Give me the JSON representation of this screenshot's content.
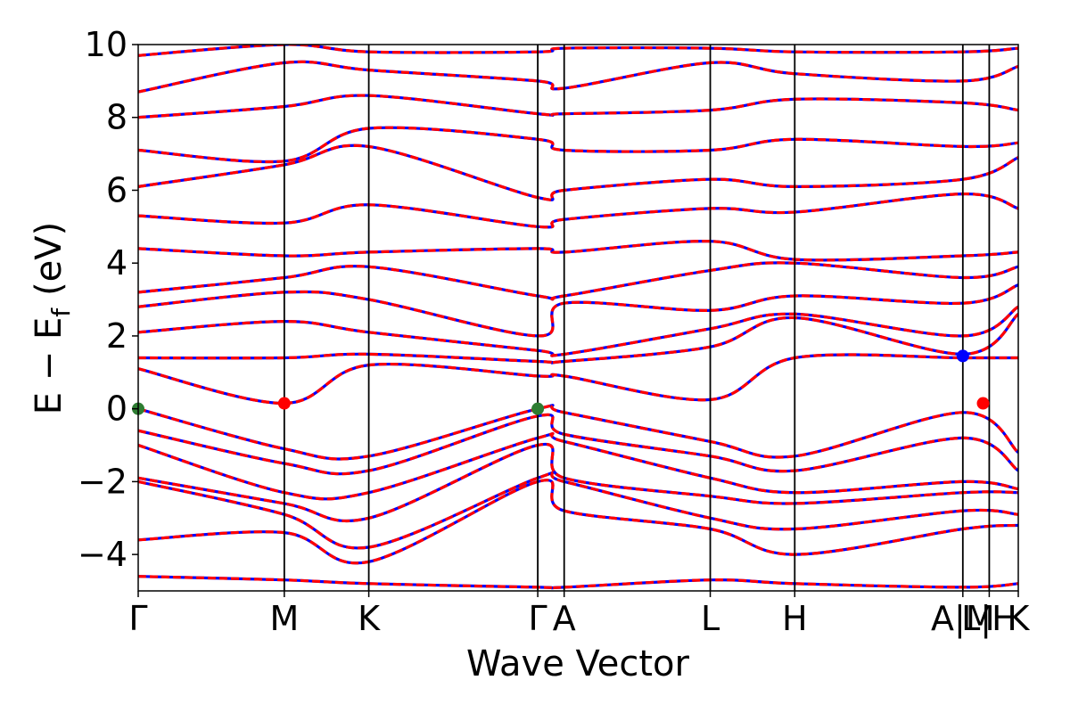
{
  "chart_data": {
    "type": "line",
    "xlabel": "Wave Vector",
    "ylabel": "E − E_f (eV)",
    "ylabel_main": "E − E",
    "ylabel_sub": "f",
    "ylabel_unit": "(eV)",
    "ylim": [
      -5,
      10
    ],
    "y_ticks": [
      -4,
      -2,
      0,
      2,
      4,
      6,
      8,
      10
    ],
    "y_tick_labels": [
      "−4",
      "−2",
      "0",
      "2",
      "4",
      "6",
      "8",
      "10"
    ],
    "x_range": [
      0,
      1
    ],
    "kpoints": [
      {
        "label": "Γ",
        "x": 0.0
      },
      {
        "label": "M",
        "x": 0.166
      },
      {
        "label": "K",
        "x": 0.262
      },
      {
        "label": "Γ",
        "x": 0.454
      },
      {
        "label": "A",
        "x": 0.484
      },
      {
        "label": "L",
        "x": 0.65
      },
      {
        "label": "H",
        "x": 0.746
      },
      {
        "label": "A|M",
        "x": 0.937
      },
      {
        "label": "L|H",
        "x": 0.967
      },
      {
        "label": "K",
        "x": 1.0
      }
    ],
    "band_colors": {
      "primary": "#ff0000",
      "secondary": "#0000ff"
    },
    "markers": [
      {
        "name": "vbm",
        "color": "#2e7d32",
        "x": 0.0,
        "y": 0.0
      },
      {
        "name": "vbm",
        "color": "#2e7d32",
        "x": 0.454,
        "y": 0.0
      },
      {
        "name": "cbm",
        "color": "#ff0000",
        "x": 0.166,
        "y": 0.15
      },
      {
        "name": "cbm",
        "color": "#ff0000",
        "x": 0.96,
        "y": 0.15
      },
      {
        "name": "band-edge",
        "color": "#0000ff",
        "x": 0.937,
        "y": 1.45
      }
    ],
    "bands": [
      {
        "name": "b1",
        "points": [
          [
            0,
            -4.6
          ],
          [
            0.166,
            -4.7
          ],
          [
            0.262,
            -4.8
          ],
          [
            0.454,
            -4.9
          ],
          [
            0.484,
            -4.9
          ],
          [
            0.65,
            -4.7
          ],
          [
            0.746,
            -4.8
          ],
          [
            0.937,
            -4.9
          ],
          [
            1,
            -4.8
          ]
        ]
      },
      {
        "name": "b2",
        "points": [
          [
            0,
            -3.6
          ],
          [
            0.166,
            -3.4
          ],
          [
            0.262,
            -4.2
          ],
          [
            0.454,
            -2.0
          ],
          [
            0.484,
            -2.8
          ],
          [
            0.65,
            -3.3
          ],
          [
            0.746,
            -4.0
          ],
          [
            0.937,
            -3.3
          ],
          [
            1,
            -3.2
          ]
        ]
      },
      {
        "name": "b3",
        "points": [
          [
            0,
            -2.0
          ],
          [
            0.166,
            -2.9
          ],
          [
            0.262,
            -3.8
          ],
          [
            0.454,
            -1.9
          ],
          [
            0.484,
            -2.0
          ],
          [
            0.65,
            -3.0
          ],
          [
            0.746,
            -3.3
          ],
          [
            0.937,
            -2.8
          ],
          [
            1,
            -2.9
          ]
        ]
      },
      {
        "name": "b4",
        "points": [
          [
            0,
            -1.9
          ],
          [
            0.166,
            -2.6
          ],
          [
            0.262,
            -3.0
          ],
          [
            0.454,
            -1.0
          ],
          [
            0.484,
            -1.9
          ],
          [
            0.65,
            -2.4
          ],
          [
            0.746,
            -2.6
          ],
          [
            0.937,
            -2.3
          ],
          [
            1,
            -2.3
          ]
        ]
      },
      {
        "name": "b5",
        "points": [
          [
            0,
            -1.0
          ],
          [
            0.166,
            -2.3
          ],
          [
            0.262,
            -2.3
          ],
          [
            0.454,
            -0.8
          ],
          [
            0.484,
            -0.9
          ],
          [
            0.65,
            -1.9
          ],
          [
            0.746,
            -2.3
          ],
          [
            0.937,
            -2.0
          ],
          [
            1,
            -2.2
          ]
        ]
      },
      {
        "name": "b6",
        "points": [
          [
            0,
            -0.6
          ],
          [
            0.166,
            -1.5
          ],
          [
            0.262,
            -1.7
          ],
          [
            0.454,
            -0.2
          ],
          [
            0.484,
            -0.7
          ],
          [
            0.65,
            -1.3
          ],
          [
            0.746,
            -1.7
          ],
          [
            0.937,
            -0.8
          ],
          [
            1,
            -1.7
          ]
        ]
      },
      {
        "name": "b7",
        "points": [
          [
            0,
            0.0
          ],
          [
            0.166,
            -1.1
          ],
          [
            0.262,
            -1.3
          ],
          [
            0.454,
            0.0
          ],
          [
            0.484,
            -0.1
          ],
          [
            0.65,
            -0.9
          ],
          [
            0.746,
            -1.3
          ],
          [
            0.937,
            -0.1
          ],
          [
            1,
            -1.2
          ]
        ]
      },
      {
        "name": "b8",
        "points": [
          [
            0,
            1.1
          ],
          [
            0.166,
            0.15
          ],
          [
            0.262,
            1.2
          ],
          [
            0.454,
            0.9
          ],
          [
            0.484,
            0.9
          ],
          [
            0.65,
            0.25
          ],
          [
            0.746,
            1.4
          ],
          [
            0.937,
            1.4
          ],
          [
            1,
            1.4
          ]
        ]
      },
      {
        "name": "b9",
        "points": [
          [
            0,
            1.4
          ],
          [
            0.166,
            1.4
          ],
          [
            0.262,
            1.5
          ],
          [
            0.454,
            1.3
          ],
          [
            0.484,
            1.3
          ],
          [
            0.65,
            1.7
          ],
          [
            0.746,
            2.5
          ],
          [
            0.937,
            1.5
          ],
          [
            1,
            2.6
          ]
        ]
      },
      {
        "name": "b10",
        "points": [
          [
            0,
            2.1
          ],
          [
            0.166,
            2.4
          ],
          [
            0.262,
            2.1
          ],
          [
            0.454,
            1.6
          ],
          [
            0.484,
            1.5
          ],
          [
            0.65,
            2.2
          ],
          [
            0.746,
            2.6
          ],
          [
            0.937,
            2.0
          ],
          [
            1,
            2.8
          ]
        ]
      },
      {
        "name": "b11",
        "points": [
          [
            0,
            2.8
          ],
          [
            0.166,
            3.2
          ],
          [
            0.262,
            3.0
          ],
          [
            0.454,
            2.0
          ],
          [
            0.484,
            2.9
          ],
          [
            0.65,
            2.7
          ],
          [
            0.746,
            3.1
          ],
          [
            0.937,
            2.9
          ],
          [
            1,
            3.4
          ]
        ]
      },
      {
        "name": "b12",
        "points": [
          [
            0,
            3.2
          ],
          [
            0.166,
            3.6
          ],
          [
            0.262,
            3.9
          ],
          [
            0.454,
            3.1
          ],
          [
            0.484,
            3.1
          ],
          [
            0.65,
            3.8
          ],
          [
            0.746,
            4.0
          ],
          [
            0.937,
            3.6
          ],
          [
            1,
            3.9
          ]
        ]
      },
      {
        "name": "b13",
        "points": [
          [
            0,
            4.4
          ],
          [
            0.166,
            4.2
          ],
          [
            0.262,
            4.3
          ],
          [
            0.454,
            4.4
          ],
          [
            0.484,
            4.3
          ],
          [
            0.65,
            4.6
          ],
          [
            0.746,
            4.1
          ],
          [
            0.937,
            4.2
          ],
          [
            1,
            4.3
          ]
        ]
      },
      {
        "name": "b14",
        "points": [
          [
            0,
            5.3
          ],
          [
            0.166,
            5.1
          ],
          [
            0.262,
            5.6
          ],
          [
            0.454,
            5.0
          ],
          [
            0.484,
            5.2
          ],
          [
            0.65,
            5.5
          ],
          [
            0.746,
            5.4
          ],
          [
            0.937,
            5.9
          ],
          [
            1,
            5.5
          ]
        ]
      },
      {
        "name": "b15",
        "points": [
          [
            0,
            6.1
          ],
          [
            0.166,
            6.7
          ],
          [
            0.262,
            7.2
          ],
          [
            0.454,
            5.8
          ],
          [
            0.484,
            6.0
          ],
          [
            0.65,
            6.3
          ],
          [
            0.746,
            6.1
          ],
          [
            0.937,
            6.3
          ],
          [
            1,
            6.9
          ]
        ]
      },
      {
        "name": "b16",
        "points": [
          [
            0,
            7.1
          ],
          [
            0.166,
            6.8
          ],
          [
            0.262,
            7.7
          ],
          [
            0.454,
            7.4
          ],
          [
            0.484,
            7.1
          ],
          [
            0.65,
            7.1
          ],
          [
            0.746,
            7.4
          ],
          [
            0.937,
            7.2
          ],
          [
            1,
            7.3
          ]
        ]
      },
      {
        "name": "b17",
        "points": [
          [
            0,
            8.0
          ],
          [
            0.166,
            8.3
          ],
          [
            0.262,
            8.6
          ],
          [
            0.454,
            8.1
          ],
          [
            0.484,
            8.1
          ],
          [
            0.65,
            8.2
          ],
          [
            0.746,
            8.5
          ],
          [
            0.937,
            8.4
          ],
          [
            1,
            8.2
          ]
        ]
      },
      {
        "name": "b18",
        "points": [
          [
            0,
            8.7
          ],
          [
            0.166,
            9.5
          ],
          [
            0.262,
            9.3
          ],
          [
            0.454,
            9.0
          ],
          [
            0.484,
            8.8
          ],
          [
            0.65,
            9.5
          ],
          [
            0.746,
            9.2
          ],
          [
            0.937,
            9.0
          ],
          [
            1,
            9.4
          ]
        ]
      },
      {
        "name": "b19",
        "points": [
          [
            0,
            9.7
          ],
          [
            0.166,
            10.0
          ],
          [
            0.262,
            9.8
          ],
          [
            0.454,
            9.8
          ],
          [
            0.484,
            9.9
          ],
          [
            0.65,
            9.9
          ],
          [
            0.746,
            9.8
          ],
          [
            0.937,
            9.8
          ],
          [
            1,
            9.9
          ]
        ]
      }
    ]
  }
}
